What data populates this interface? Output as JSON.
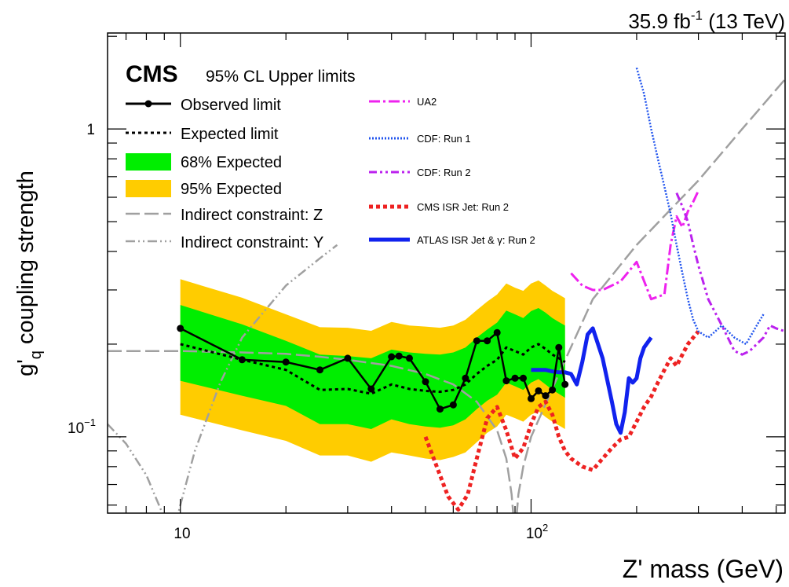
{
  "chart_data": {
    "type": "line",
    "top_right_label": {
      "lumi": "35.9 fb",
      "lumi_exp": "-1",
      "energy": " (13 TeV)"
    },
    "experiment": "CMS",
    "subtitle": "95% CL Upper limits",
    "xlabel": "Z' mass (GeV)",
    "ylabel": {
      "g": "g'",
      "sub": "q",
      "rest": " coupling strength"
    },
    "x_scale": "log",
    "y_scale": "log",
    "xlim": [
      6.2,
      530
    ],
    "ylim": [
      0.0565,
      2.05
    ],
    "x_ticks": [
      {
        "base": "10",
        "exp": ""
      },
      {
        "base": "10",
        "exp": "2"
      }
    ],
    "y_ticks": [
      {
        "base": "10",
        "exp": "−1"
      },
      {
        "base": "1",
        "exp": ""
      }
    ],
    "grid": false,
    "legend_left": [
      {
        "label": "Observed limit"
      },
      {
        "label": "Expected limit"
      },
      {
        "label": "68% Expected"
      },
      {
        "label": "95% Expected"
      },
      {
        "label": "Indirect constraint: Z"
      },
      {
        "label": "Indirect constraint: Υ"
      }
    ],
    "legend_right": [
      {
        "label": "UA2"
      },
      {
        "label": "CDF: Run 1"
      },
      {
        "label": "CDF: Run 2"
      },
      {
        "label": "CMS ISR Jet: Run 2"
      },
      {
        "label": "ATLAS ISR Jet & γ: Run 2"
      }
    ],
    "colors": {
      "observed": "#000000",
      "expected": "#000000",
      "band68": "#00ee00",
      "band95": "#ffcc00",
      "indirect": "#a0a0a0",
      "ua2": "#ee22ee",
      "cdf1": "#2255ee",
      "cdf2": "#bb22ee",
      "cms_isr": "#ee2222",
      "atlas": "#1122ee"
    },
    "series": {
      "observed": {
        "x": [
          10,
          15,
          20,
          25,
          30,
          35,
          40,
          42,
          45,
          50,
          55,
          60,
          65,
          70,
          75,
          80,
          85,
          90,
          95,
          100,
          105,
          110,
          115,
          120,
          125
        ],
        "y": [
          0.225,
          0.178,
          0.175,
          0.165,
          0.18,
          0.143,
          0.182,
          0.183,
          0.18,
          0.151,
          0.123,
          0.127,
          0.155,
          0.205,
          0.205,
          0.218,
          0.152,
          0.155,
          0.155,
          0.133,
          0.141,
          0.136,
          0.142,
          0.195,
          0.148
        ]
      },
      "expected": {
        "x": [
          10,
          15,
          20,
          25,
          30,
          35,
          40,
          45,
          50,
          55,
          60,
          65,
          70,
          75,
          80,
          85,
          90,
          95,
          100,
          105,
          110,
          115,
          120,
          125
        ],
        "y": [
          0.2,
          0.178,
          0.165,
          0.142,
          0.143,
          0.138,
          0.148,
          0.143,
          0.141,
          0.14,
          0.142,
          0.148,
          0.16,
          0.17,
          0.178,
          0.195,
          0.19,
          0.185,
          0.195,
          0.2,
          0.193,
          0.185,
          0.18,
          0.175
        ]
      },
      "band68_upper": [
        0.268,
        0.232,
        0.205,
        0.185,
        0.183,
        0.18,
        0.192,
        0.188,
        0.186,
        0.185,
        0.188,
        0.195,
        0.21,
        0.223,
        0.235,
        0.257,
        0.25,
        0.243,
        0.256,
        0.262,
        0.253,
        0.243,
        0.236,
        0.23
      ],
      "band68_lower": [
        0.152,
        0.136,
        0.126,
        0.11,
        0.11,
        0.106,
        0.114,
        0.11,
        0.108,
        0.107,
        0.109,
        0.114,
        0.123,
        0.131,
        0.137,
        0.15,
        0.146,
        0.142,
        0.15,
        0.154,
        0.148,
        0.142,
        0.138,
        0.134
      ],
      "band95_upper": [
        0.325,
        0.283,
        0.25,
        0.227,
        0.226,
        0.221,
        0.236,
        0.23,
        0.228,
        0.226,
        0.23,
        0.24,
        0.258,
        0.275,
        0.29,
        0.315,
        0.305,
        0.298,
        0.315,
        0.322,
        0.31,
        0.298,
        0.29,
        0.282
      ],
      "band95_lower": [
        0.118,
        0.105,
        0.097,
        0.087,
        0.087,
        0.083,
        0.089,
        0.087,
        0.085,
        0.084,
        0.086,
        0.089,
        0.096,
        0.103,
        0.108,
        0.118,
        0.115,
        0.112,
        0.118,
        0.121,
        0.116,
        0.112,
        0.109,
        0.106
      ],
      "indirect_z": {
        "x": [
          6.2,
          10,
          15,
          20,
          25,
          30,
          40,
          50,
          60,
          70,
          80,
          85,
          88,
          89,
          90,
          91,
          92,
          95,
          100,
          120,
          150,
          200,
          300,
          400,
          530
        ],
        "y": [
          0.19,
          0.19,
          0.188,
          0.186,
          0.182,
          0.178,
          0.17,
          0.16,
          0.148,
          0.13,
          0.105,
          0.085,
          0.065,
          0.056,
          0.05,
          0.056,
          0.065,
          0.08,
          0.1,
          0.16,
          0.28,
          0.42,
          0.68,
          1.0,
          1.45
        ]
      },
      "indirect_upsilon": {
        "x": [
          6.2,
          7,
          8,
          8.8,
          9.3,
          9.46,
          9.6,
          10,
          11,
          13,
          15,
          20,
          25,
          28
        ],
        "y": [
          0.11,
          0.095,
          0.075,
          0.058,
          0.05,
          0.045,
          0.05,
          0.06,
          0.09,
          0.15,
          0.21,
          0.31,
          0.38,
          0.42
        ]
      },
      "ua2": {
        "x": [
          130,
          140,
          150,
          160,
          180,
          200,
          220,
          240,
          250,
          260,
          270,
          280,
          290,
          300
        ],
        "y": [
          0.34,
          0.31,
          0.3,
          0.3,
          0.32,
          0.37,
          0.28,
          0.29,
          0.42,
          0.52,
          0.48,
          0.54,
          0.58,
          0.63
        ]
      },
      "cdf1": {
        "x": [
          200,
          210,
          220,
          230,
          240,
          250,
          260,
          270,
          280,
          290,
          300,
          320,
          350,
          380,
          410,
          440,
          460
        ],
        "y": [
          1.58,
          1.3,
          1.0,
          0.8,
          0.65,
          0.53,
          0.42,
          0.34,
          0.28,
          0.24,
          0.22,
          0.21,
          0.23,
          0.21,
          0.2,
          0.23,
          0.25
        ]
      },
      "cdf2": {
        "x": [
          260,
          270,
          280,
          290,
          300,
          320,
          350,
          380,
          400,
          420,
          440,
          460,
          480,
          500,
          530
        ],
        "y": [
          0.62,
          0.56,
          0.5,
          0.42,
          0.36,
          0.28,
          0.23,
          0.19,
          0.185,
          0.19,
          0.2,
          0.21,
          0.23,
          0.225,
          0.22
        ]
      },
      "cms_isr": {
        "x": [
          50,
          55,
          58,
          62,
          66,
          70,
          75,
          80,
          85,
          90,
          95,
          100,
          105,
          110,
          115,
          120,
          125,
          130,
          140,
          150,
          160,
          170,
          180,
          190,
          200,
          210,
          220,
          230,
          240,
          250,
          260,
          270,
          280,
          290,
          300
        ],
        "y": [
          0.1,
          0.075,
          0.064,
          0.058,
          0.065,
          0.085,
          0.115,
          0.125,
          0.105,
          0.085,
          0.092,
          0.11,
          0.125,
          0.13,
          0.118,
          0.1,
          0.09,
          0.085,
          0.08,
          0.078,
          0.085,
          0.092,
          0.098,
          0.1,
          0.112,
          0.125,
          0.135,
          0.15,
          0.165,
          0.18,
          0.17,
          0.185,
          0.2,
          0.21,
          0.22
        ]
      },
      "atlas": {
        "x": [
          100,
          105,
          110,
          115,
          120,
          125,
          130,
          135,
          140,
          145,
          150,
          160,
          170,
          175,
          180,
          185,
          190,
          195,
          200,
          205,
          210,
          220
        ],
        "y": [
          0.165,
          0.165,
          0.165,
          0.163,
          0.162,
          0.162,
          0.16,
          0.148,
          0.175,
          0.215,
          0.225,
          0.18,
          0.13,
          0.11,
          0.103,
          0.12,
          0.155,
          0.15,
          0.155,
          0.18,
          0.195,
          0.21
        ]
      }
    }
  }
}
